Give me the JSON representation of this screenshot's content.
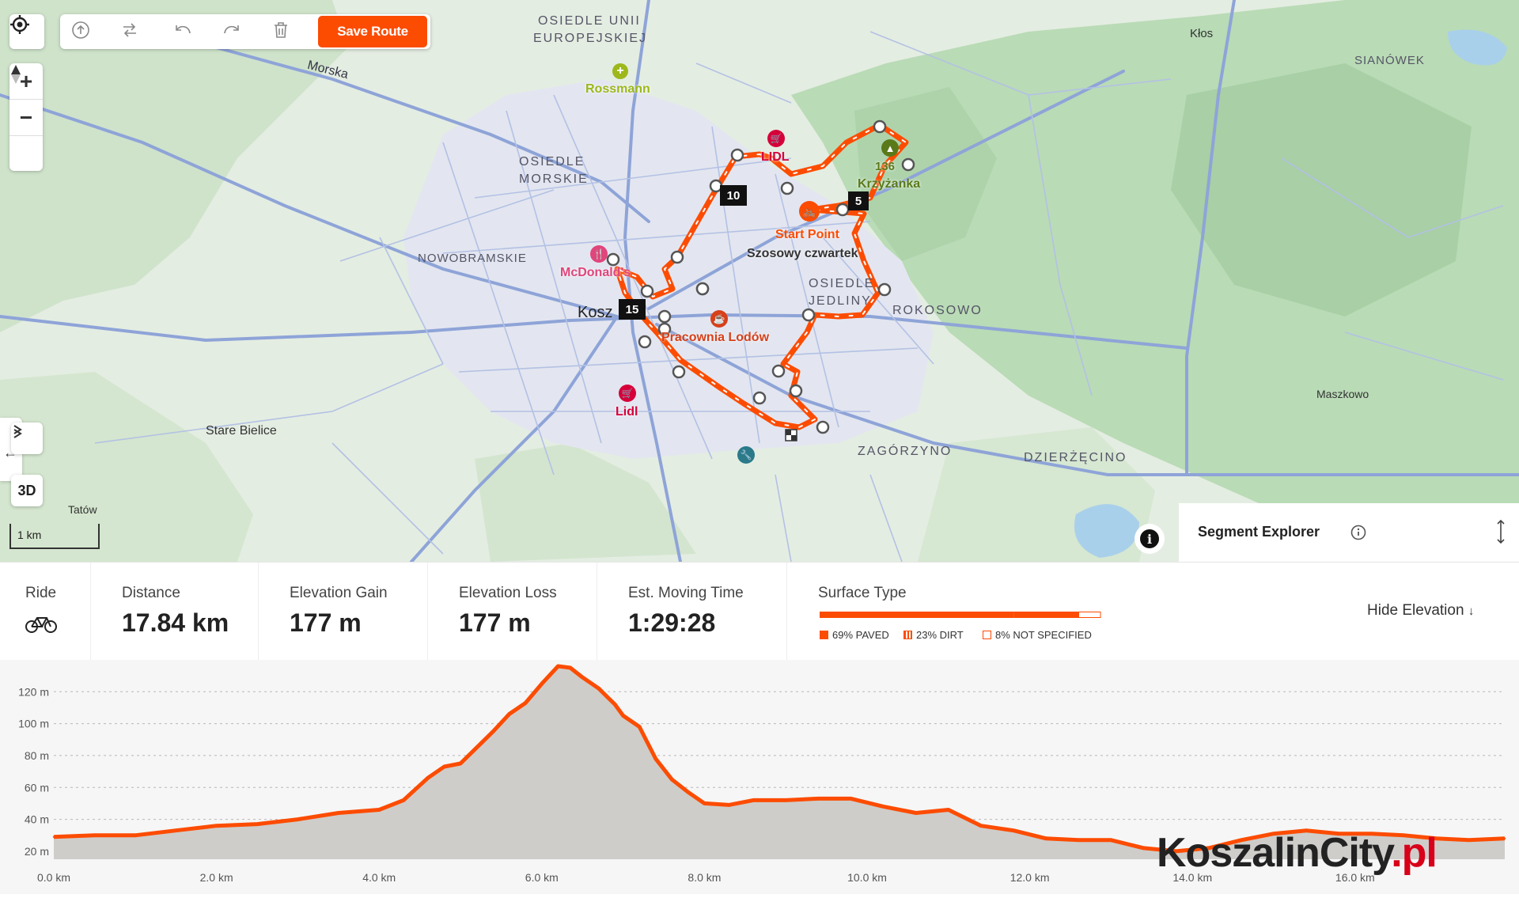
{
  "toolbar": {
    "save_label": "Save Route",
    "icons": [
      "upload-icon",
      "reverse-icon",
      "undo-icon",
      "redo-icon",
      "trash-icon"
    ]
  },
  "map_controls": {
    "three_d_label": "3D",
    "scale_label": "1 km"
  },
  "map": {
    "place_labels": [
      {
        "text": "OSIEDLE UNII",
        "style": "district"
      },
      {
        "text": "EUROPEJSKIEJ",
        "style": "district"
      },
      {
        "text": "OSIEDLE",
        "style": "district"
      },
      {
        "text": "MORSKIE",
        "style": "district"
      },
      {
        "text": "NOWOBRAMSKIE",
        "style": "district"
      },
      {
        "text": "OSIEDLE",
        "style": "district"
      },
      {
        "text": "JEDLINY",
        "style": "district"
      },
      {
        "text": "ROKOSOWO",
        "style": "district"
      },
      {
        "text": "ZAGÓRZYNO",
        "style": "district"
      },
      {
        "text": "DZIERŻĘCINO",
        "style": "district"
      },
      {
        "text": "SIANÓWEK",
        "style": "district"
      },
      {
        "text": "Kłos",
        "style": "town"
      },
      {
        "text": "Maszkowo",
        "style": "town"
      },
      {
        "text": "Stare Bielice",
        "style": "town"
      },
      {
        "text": "Tatów",
        "style": "town"
      },
      {
        "text": "Morska",
        "style": "road"
      },
      {
        "text": "Kosz",
        "style": "city"
      }
    ],
    "pois": [
      {
        "text": "Rossmann",
        "color": "#9cb81a",
        "icon": "cross-icon"
      },
      {
        "text": "LIDL",
        "color": "#d6003a",
        "icon": "cart-icon"
      },
      {
        "text": "McDonald's",
        "color": "#e0457b",
        "icon": "fork-icon"
      },
      {
        "text": "Pracownia Lodów",
        "color": "#d6401a",
        "icon": "cup-icon"
      },
      {
        "text": "Lidl",
        "color": "#d6003a",
        "icon": "cart-icon"
      },
      {
        "text": "Start Point",
        "color": "#fc4c02",
        "icon": "bike-icon"
      },
      {
        "text": "Szosowy czwartek",
        "color": "#333333",
        "icon": ""
      },
      {
        "text": "Krzyżanka",
        "color": "#5a7a1a",
        "icon": "mountain-icon"
      },
      {
        "text": "136",
        "color": "#5a7a1a",
        "icon": ""
      }
    ],
    "markers": [
      "10",
      "5",
      "15"
    ]
  },
  "segment_explorer": {
    "title": "Segment Explorer"
  },
  "stats": {
    "ride_label": "Ride",
    "distance_label": "Distance",
    "distance_value": "17.84 km",
    "gain_label": "Elevation Gain",
    "gain_value": "177 m",
    "loss_label": "Elevation Loss",
    "loss_value": "177 m",
    "time_label": "Est. Moving Time",
    "time_value": "1:29:28",
    "surface_label": "Surface Type",
    "surface": [
      {
        "label": "69% PAVED",
        "pct": 69,
        "color": "#fc4c02"
      },
      {
        "label": "23% DIRT",
        "pct": 23,
        "color": "#fc4c02"
      },
      {
        "label": "8% NOT SPECIFIED",
        "pct": 8,
        "color": "#fc4c02"
      }
    ],
    "hide_elevation": "Hide Elevation"
  },
  "chart_data": {
    "type": "area",
    "xlabel": "",
    "ylabel": "",
    "x_ticks": [
      "0.0 km",
      "2.0 km",
      "4.0 km",
      "6.0 km",
      "8.0 km",
      "10.0 km",
      "12.0 km",
      "14.0 km",
      "16.0 km"
    ],
    "y_ticks": [
      "20 m",
      "40 m",
      "60 m",
      "80 m",
      "100 m",
      "120 m"
    ],
    "xlim": [
      0,
      17.84
    ],
    "ylim": [
      15,
      135
    ],
    "x": [
      0,
      0.5,
      1.0,
      1.5,
      2.0,
      2.5,
      3.0,
      3.5,
      4.0,
      4.3,
      4.6,
      4.8,
      5.0,
      5.2,
      5.4,
      5.6,
      5.8,
      6.0,
      6.2,
      6.35,
      6.5,
      6.7,
      6.9,
      7.0,
      7.2,
      7.4,
      7.6,
      7.8,
      8.0,
      8.3,
      8.6,
      9.0,
      9.4,
      9.8,
      10.2,
      10.6,
      11.0,
      11.4,
      11.8,
      12.2,
      12.6,
      13.0,
      13.4,
      13.8,
      14.2,
      14.6,
      15.0,
      15.4,
      15.8,
      16.2,
      16.6,
      17.0,
      17.4,
      17.84
    ],
    "values": [
      29,
      30,
      30,
      33,
      36,
      37,
      40,
      44,
      46,
      52,
      66,
      73,
      75,
      85,
      95,
      106,
      113,
      125,
      136,
      135,
      129,
      122,
      112,
      105,
      98,
      78,
      65,
      57,
      50,
      49,
      52,
      52,
      53,
      53,
      48,
      44,
      46,
      36,
      33,
      28,
      27,
      27,
      22,
      20,
      22,
      27,
      31,
      33,
      31,
      31,
      30,
      28,
      27,
      28
    ]
  },
  "watermark": {
    "name": "KoszalinCity",
    "tld": ".pl"
  }
}
